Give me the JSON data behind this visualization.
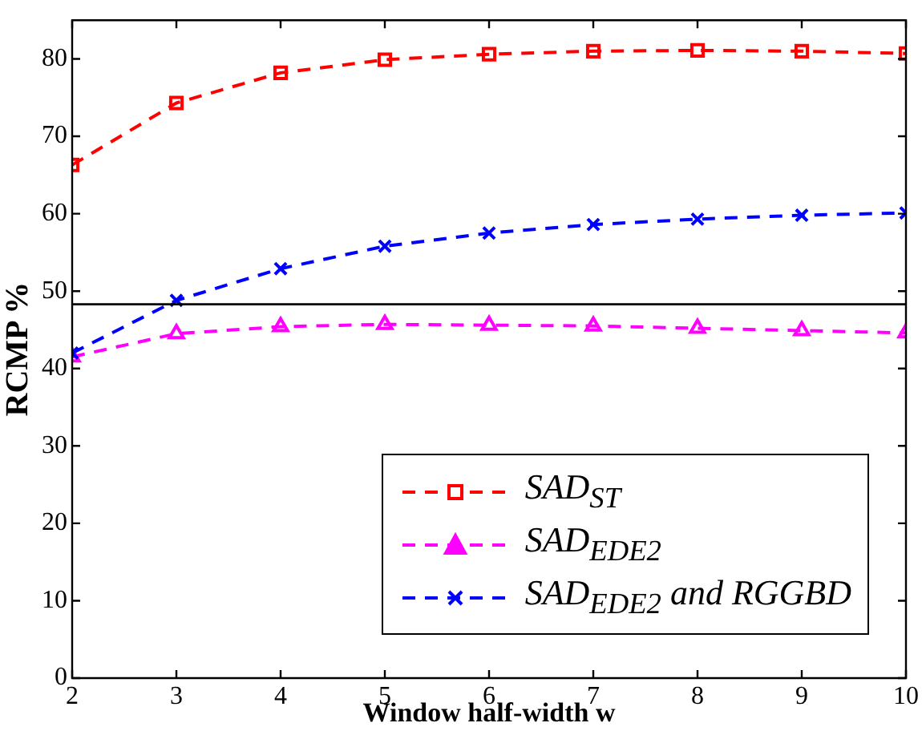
{
  "chart_data": {
    "type": "line",
    "xlabel": "Window half-width w",
    "ylabel": "RCMP %",
    "x": [
      2,
      3,
      4,
      5,
      6,
      7,
      8,
      9,
      10
    ],
    "xlim": [
      2,
      10
    ],
    "xticks": [
      2,
      3,
      4,
      5,
      6,
      7,
      8,
      9,
      10
    ],
    "ylim": [
      0,
      85
    ],
    "yticks": [
      0,
      10,
      20,
      30,
      40,
      50,
      60,
      70,
      80
    ],
    "grid": false,
    "legend": "bottom right",
    "line_style": "dashed",
    "series": [
      {
        "name": "SAD$_{ST}$",
        "color": "#ff0000",
        "marker": "square",
        "values": [
          66.3,
          74.3,
          78.2,
          79.9,
          80.6,
          81.0,
          81.1,
          81.0,
          80.7
        ]
      },
      {
        "name": "SAD$_{EDE2}$",
        "color": "#ff00ff",
        "marker": "triangle",
        "values": [
          41.5,
          44.5,
          45.4,
          45.7,
          45.6,
          45.5,
          45.2,
          44.9,
          44.6
        ]
      },
      {
        "name": "SAD$_{EDE2}$ and RGGBD",
        "color": "#0000ff",
        "marker": "cross",
        "values": [
          42.0,
          48.8,
          52.9,
          55.8,
          57.5,
          58.6,
          59.3,
          59.8,
          60.1
        ]
      }
    ],
    "ref_lines": [
      {
        "axis": "y",
        "value": 48.3,
        "color": "#000000"
      }
    ]
  }
}
